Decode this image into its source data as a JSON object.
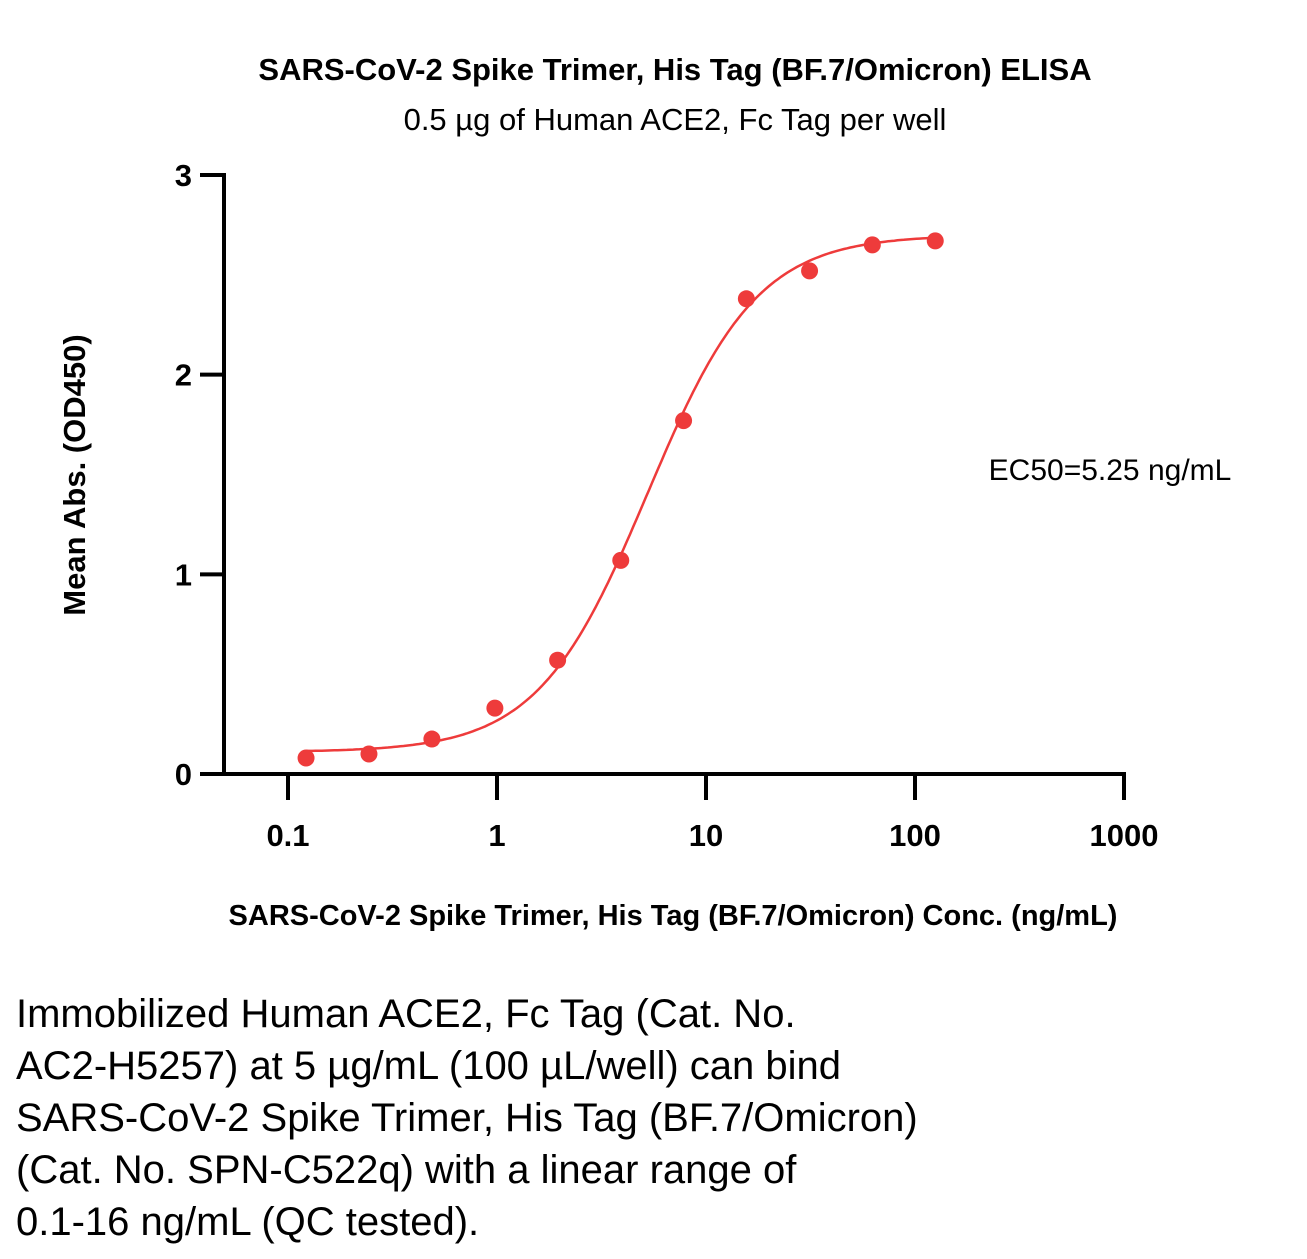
{
  "chart_data": {
    "type": "scatter",
    "title": "SARS-CoV-2 Spike Trimer, His Tag (BF.7/Omicron) ELISA",
    "subtitle": "0.5 µg of Human ACE2, Fc Tag per well",
    "xlabel": "SARS-CoV-2 Spike Trimer, His Tag (BF.7/Omicron) Conc. (ng/mL)",
    "ylabel": "Mean Abs. (OD450)",
    "xscale": "log",
    "xlim": [
      0.1,
      1000
    ],
    "ylim": [
      0,
      3
    ],
    "xticks": [
      "0.1",
      "1",
      "10",
      "100",
      "1000"
    ],
    "xtick_values": [
      0.1,
      1,
      10,
      100,
      1000
    ],
    "yticks": [
      "0",
      "1",
      "2",
      "3"
    ],
    "ytick_values": [
      0,
      1,
      2,
      3
    ],
    "grid": false,
    "annotation": "EC50=5.25 ng/mL",
    "color": "#ee3b3b",
    "series": [
      {
        "name": "BF.7/Omicron",
        "x": [
          0.122,
          0.244,
          0.488,
          0.977,
          1.95,
          3.91,
          7.81,
          15.6,
          31.3,
          62.5,
          125
        ],
        "y": [
          0.08,
          0.1,
          0.175,
          0.33,
          0.57,
          1.07,
          1.77,
          2.38,
          2.52,
          2.65,
          2.67
        ]
      }
    ],
    "fit": {
      "model": "4PL",
      "bottom": 0.11,
      "top": 2.7,
      "ec50": 5.25,
      "hill": 1.65
    }
  },
  "caption": [
    "Immobilized Human ACE2, Fc Tag (Cat. No.",
    "AC2-H5257) at 5 µg/mL (100 µL/well) can bind",
    "SARS-CoV-2 Spike Trimer, His Tag (BF.7/Omicron)",
    "(Cat. No. SPN-C522q) with a linear range of",
    "0.1-16 ng/mL (QC tested)."
  ]
}
